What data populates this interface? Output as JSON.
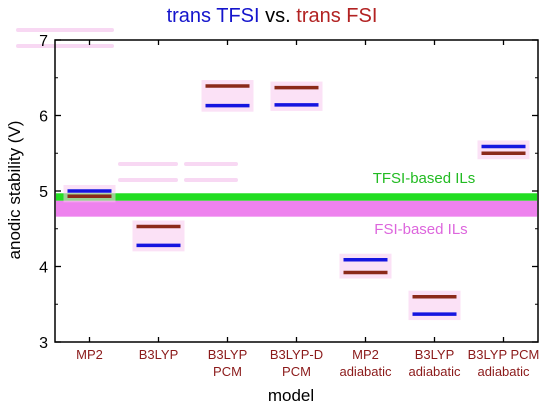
{
  "chart_data": {
    "type": "scatter",
    "title_parts": [
      {
        "text": "trans TFSI",
        "color": "#1515CC"
      },
      {
        "text": " vs. ",
        "color": "#000000"
      },
      {
        "text": "trans FSI",
        "color": "#B22222"
      }
    ],
    "xlabel": "model",
    "ylabel": "anodic stability (V)",
    "ylim": [
      3,
      7
    ],
    "yticks": [
      3,
      4,
      5,
      6,
      7
    ],
    "categories": [
      [
        "MP2"
      ],
      [
        "B3LYP"
      ],
      [
        "B3LYP",
        "PCM"
      ],
      [
        "B3LYP-D",
        "PCM"
      ],
      [
        "MP2",
        "adiabatic"
      ],
      [
        "B3LYP",
        "adiabatic"
      ],
      [
        "B3LYP PCM",
        "adiabatic"
      ]
    ],
    "series": [
      {
        "name": "trans TFSI",
        "color": "#1515E0",
        "values": [
          5.0,
          4.28,
          6.13,
          6.14,
          4.09,
          3.37,
          5.59
        ]
      },
      {
        "name": "trans FSI",
        "color": "#8B2A1A",
        "values": [
          4.93,
          4.53,
          6.39,
          6.37,
          3.92,
          3.6,
          5.5
        ]
      }
    ],
    "bands": [
      {
        "label": "TFSI-based ILs",
        "color": "#22DD22",
        "text_color": "#22BB22",
        "from": 4.87,
        "to": 4.97
      },
      {
        "label": "FSI-based ILs",
        "color": "#EE82EE",
        "text_color": "#DD66DD",
        "from": 4.66,
        "to": 4.87
      }
    ],
    "highlight_color": "#F7C8EE",
    "ghost_color": "#F2B8EA"
  }
}
